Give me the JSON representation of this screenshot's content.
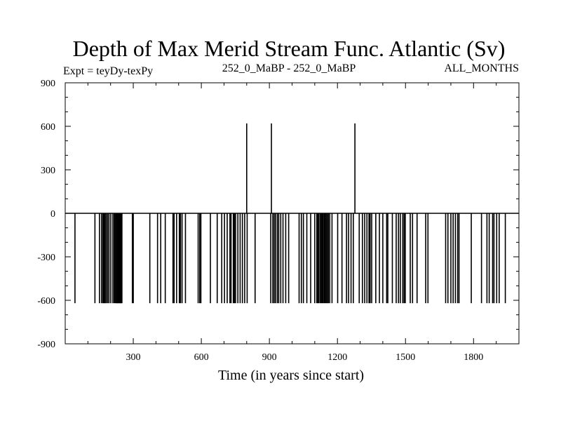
{
  "chart_data": {
    "type": "line",
    "title": "Depth of Max Merid Stream Func. Atlantic (Sv)",
    "subtitle_left": "Expt = teyDy-texPy",
    "subtitle_center": "252_0_MaBP - 252_0_MaBP",
    "subtitle_right": "ALL_MONTHS",
    "xlabel": "Time (in years since start)",
    "ylabel": "",
    "xlim": [
      0,
      2000
    ],
    "ylim": [
      -900,
      900
    ],
    "x_ticks": [
      300,
      600,
      900,
      1200,
      1500,
      1800
    ],
    "y_ticks": [
      -900,
      -600,
      -300,
      0,
      300,
      600,
      900
    ],
    "baseline": 0,
    "series": [
      {
        "color": "#000000",
        "negative_spikes": {
          "value": -620,
          "x": [
            43,
            131,
            151,
            160,
            166,
            169,
            174,
            176,
            181,
            187,
            193,
            201,
            210,
            216,
            220,
            225,
            227,
            229,
            231,
            233,
            236,
            238,
            240,
            243,
            245,
            247,
            250,
            296,
            300,
            373,
            407,
            421,
            441,
            475,
            480,
            491,
            503,
            508,
            515,
            530,
            586,
            593,
            598,
            640,
            670,
            690,
            702,
            714,
            726,
            731,
            741,
            746,
            751,
            761,
            771,
            781,
            791,
            802,
            837,
            906,
            915,
            921,
            927,
            935,
            941,
            950,
            960,
            972,
            985,
            1031,
            1041,
            1050,
            1065,
            1082,
            1100,
            1109,
            1113,
            1117,
            1123,
            1128,
            1132,
            1137,
            1142,
            1146,
            1151,
            1156,
            1160,
            1166,
            1176,
            1201,
            1220,
            1240,
            1249,
            1260,
            1270,
            1296,
            1310,
            1320,
            1330,
            1339,
            1344,
            1351,
            1369,
            1385,
            1400,
            1417,
            1422,
            1442,
            1459,
            1469,
            1477,
            1488,
            1494,
            1499,
            1521,
            1531,
            1551,
            1589,
            1599,
            1677,
            1687,
            1700,
            1710,
            1720,
            1730,
            1736,
            1790,
            1835,
            1859,
            1869,
            1884,
            1890,
            1902,
            1913,
            1940
          ]
        },
        "positive_spikes": {
          "value": 620,
          "x": [
            800,
            909,
            1277
          ]
        }
      }
    ]
  }
}
